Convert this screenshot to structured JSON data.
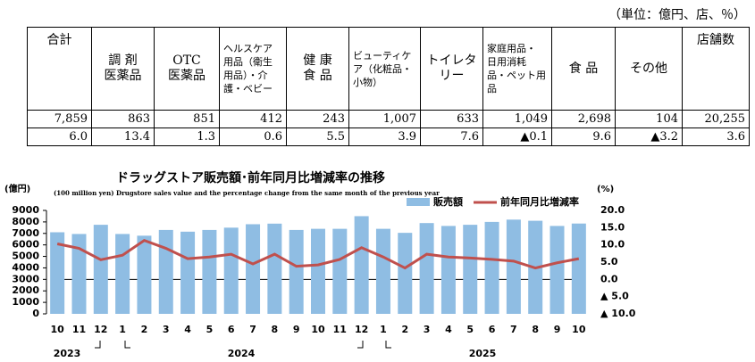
{
  "unit": "（単位：億円、店、％）",
  "table": {
    "header": [
      [
        "合計"
      ],
      [
        "調 剤",
        "医薬品"
      ],
      [
        "OTC",
        "医薬品"
      ],
      [
        "ヘルスケア",
        "用品（衛生",
        "用品）・介",
        "護・ベビー"
      ],
      [
        "健 康",
        "食 品"
      ],
      [
        "ビューティケ",
        "ア（化粧品・",
        "小物）"
      ],
      [
        "トイレタリー"
      ],
      [
        "家庭用品・",
        "日用消耗",
        "品・ペット用",
        "品"
      ],
      [
        "食 品"
      ],
      [
        "その他"
      ],
      [
        "店舗数"
      ]
    ],
    "rows": [
      [
        "7,859",
        "863",
        "851",
        "412",
        "243",
        "1,007",
        "633",
        "1,049",
        "2,698",
        "104",
        "20,255"
      ],
      [
        "6.0",
        "13.4",
        "1.3",
        "0.6",
        "5.5",
        "3.9",
        "7.6",
        "▲0.1",
        "9.6",
        "▲3.2",
        "3.6"
      ]
    ]
  },
  "chart_data": {
    "type": "bar_line",
    "title": "ドラッグストア販売額･前年同月比増減率の推移",
    "subtitle": "Drugstore sales value and the percentage change from the same month of the previous year",
    "y_label": "(億円)",
    "y_label_en": "(100 million yen)",
    "y2_label": "(%)",
    "categories": [
      "10",
      "11",
      "12",
      "1",
      "2",
      "3",
      "4",
      "5",
      "6",
      "7",
      "8",
      "9",
      "10",
      "11",
      "12",
      "1",
      "2",
      "3",
      "4",
      "5",
      "6",
      "7",
      "8",
      "9",
      "10"
    ],
    "years": [
      "2023",
      "2024",
      "2025"
    ],
    "ylim": [
      0,
      9000
    ],
    "yticks": [
      0,
      1000,
      2000,
      3000,
      4000,
      5000,
      6000,
      7000,
      8000,
      9000
    ],
    "y2lim": [
      -10,
      20
    ],
    "y2ticks": [
      {
        "value": 20,
        "label": "20.0"
      },
      {
        "value": 15,
        "label": "15.0"
      },
      {
        "value": 10,
        "label": "10.0"
      },
      {
        "value": 5,
        "label": "5.0"
      },
      {
        "value": 0,
        "label": "0.0"
      },
      {
        "value": -5,
        "label": "▲ 5.0"
      },
      {
        "value": -10,
        "label": "▲ 10.0"
      }
    ],
    "legend": "top-right",
    "series": [
      {
        "name": "販売額",
        "color": "#8fbde3",
        "type": "bar",
        "values": [
          7100,
          6950,
          7750,
          6950,
          6800,
          7300,
          7150,
          7300,
          7500,
          7800,
          7850,
          7300,
          7400,
          7400,
          8500,
          7400,
          7050,
          7900,
          7650,
          7750,
          8000,
          8200,
          8100,
          7650,
          7859
        ]
      },
      {
        "name": "前年同月比増減率",
        "color": "#c0504d",
        "type": "line",
        "axis": "y2",
        "values": [
          10.3,
          9.0,
          5.7,
          7.0,
          11.3,
          9.0,
          6.0,
          6.5,
          7.3,
          4.5,
          7.3,
          3.8,
          4.2,
          5.8,
          9.2,
          6.5,
          3.3,
          7.3,
          6.5,
          6.2,
          5.8,
          5.3,
          3.3,
          4.8,
          6.0
        ]
      }
    ]
  }
}
